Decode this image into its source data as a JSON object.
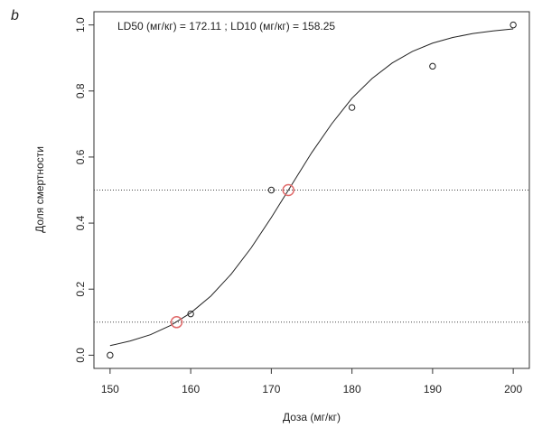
{
  "panel_label": "b",
  "chart_data": {
    "type": "scatter",
    "annotation": "LD50 (мг/кг) = 172.11 ; LD10 (мг/кг) = 158.25",
    "x_label": "Доза (мг/кг)",
    "y_label": "Доля смертности",
    "points": {
      "x": [
        150,
        160,
        170,
        180,
        190,
        200
      ],
      "y": [
        0,
        0.125,
        0.5,
        0.75,
        0.875,
        1.0
      ],
      "color": "#222222"
    },
    "curve": {
      "x": [
        150,
        152.5,
        155,
        157.5,
        160,
        162.5,
        165,
        167.5,
        170,
        172.5,
        175,
        177.5,
        180,
        182.5,
        185,
        187.5,
        190,
        192.5,
        195,
        197.5,
        200
      ],
      "y": [
        0.029,
        0.043,
        0.062,
        0.09,
        0.128,
        0.179,
        0.245,
        0.325,
        0.417,
        0.515,
        0.613,
        0.701,
        0.778,
        0.838,
        0.885,
        0.92,
        0.945,
        0.962,
        0.974,
        0.982,
        0.988
      ],
      "color": "#222222"
    },
    "markers": {
      "x": [
        172.11,
        158.25
      ],
      "y": [
        0.5,
        0.1
      ],
      "color": "#e06a6a"
    },
    "hlines": [
      0.5,
      0.1
    ],
    "xlim": [
      148,
      202
    ],
    "ylim": [
      -0.04,
      1.04
    ],
    "xticks": [
      150,
      160,
      170,
      180,
      190,
      200
    ],
    "yticks": [
      {
        "value": 0,
        "label": "0.0"
      },
      0.2,
      0.4,
      0.6,
      0.8,
      {
        "value": 1,
        "label": "1.0"
      }
    ]
  }
}
